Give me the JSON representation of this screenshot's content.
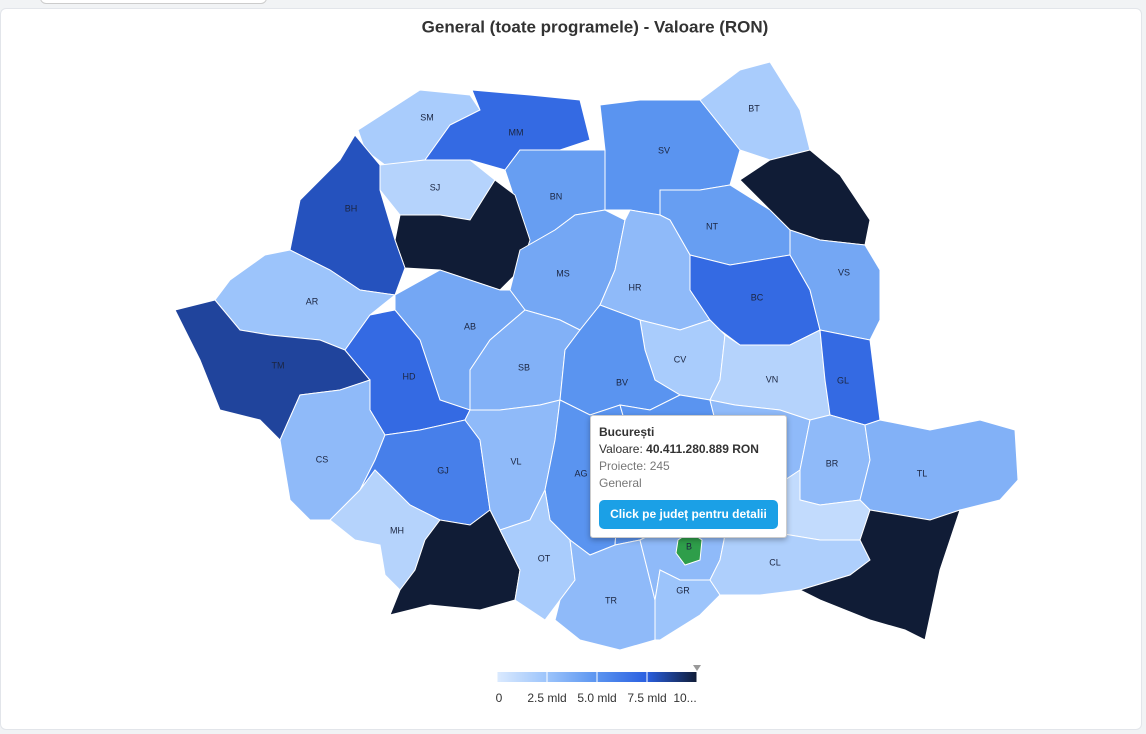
{
  "chart_data": {
    "type": "choropleth",
    "title": "General (toate programele) - Valoare (RON)",
    "categories": [
      "SM",
      "MM",
      "BN",
      "SV",
      "BT",
      "SJ",
      null,
      null,
      "BH",
      "NT",
      "MS",
      "HR",
      "AR",
      "BC",
      "VS",
      "AB",
      "TM",
      "HD",
      "SB",
      "CV",
      "BV",
      "VN",
      "GL",
      "CS",
      "GJ",
      "VL",
      "AG",
      null,
      null,
      "BR",
      "TL",
      "MH",
      null,
      "OT",
      null,
      "TR",
      null,
      "GR",
      null,
      "CL",
      null,
      "B"
    ],
    "values": [
      2,
      7,
      4.5,
      5,
      2,
      1.5,
      10,
      10,
      8,
      4.5,
      4,
      3,
      2.5,
      7,
      4,
      4,
      8.5,
      7,
      3.5,
      2,
      5,
      1.5,
      7,
      3,
      6,
      3,
      5,
      5,
      3,
      3,
      3.5,
      1.5,
      10,
      2,
      5,
      3,
      3,
      2.5,
      1,
      1.8,
      10,
      40.411280889
    ],
    "colors": [
      "#dbeafe",
      "#9cc4fb",
      "#5a94f0",
      "#2a5fe0",
      "#101c36"
    ],
    "highlight_color": "#2e9e4a",
    "colorlim": [
      0,
      10
    ],
    "colorticks": [
      0,
      {
        "value": 2.5,
        "label": "2.5 mld"
      },
      {
        "value": 5,
        "label": "5.0 mld"
      },
      {
        "value": 7.5,
        "label": "7.5 mld"
      },
      {
        "value": 10,
        "label": "10..."
      }
    ],
    "tooltip": {
      "title": "București",
      "value_label": "Valoare:",
      "value": "40.411.280.889 RON",
      "projects": "Proiecte: 245",
      "program": "General",
      "button": "Click pe județ pentru detalii"
    }
  }
}
